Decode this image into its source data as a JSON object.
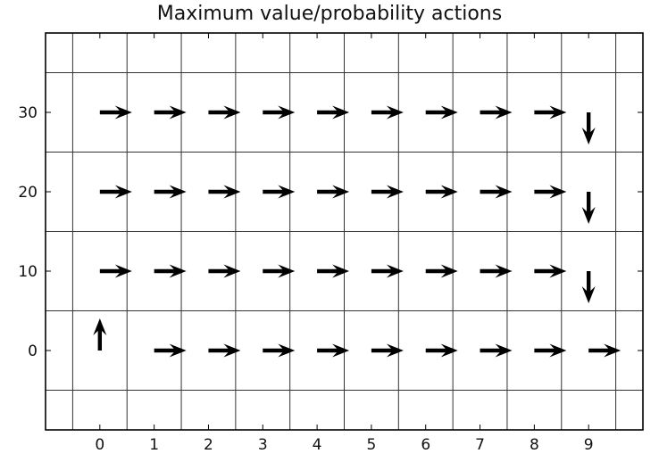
{
  "chart_data": {
    "type": "quiver",
    "title": "Maximum value/probability actions",
    "xlabel": "",
    "ylabel": "",
    "xlim": [
      -1,
      10
    ],
    "ylim": [
      -10,
      40
    ],
    "x_ticks": [
      0,
      1,
      2,
      3,
      4,
      5,
      6,
      7,
      8,
      9
    ],
    "x_tick_labels": [
      "0",
      "1",
      "2",
      "3",
      "4",
      "5",
      "6",
      "7",
      "8",
      "9"
    ],
    "y_ticks": [
      0,
      10,
      20,
      30
    ],
    "y_tick_labels": [
      "0",
      "10",
      "20",
      "30"
    ],
    "x_grid_lines": [
      -0.5,
      0.5,
      1.5,
      2.5,
      3.5,
      4.5,
      5.5,
      6.5,
      7.5,
      8.5,
      9.5
    ],
    "y_grid_lines": [
      -5,
      5,
      15,
      25,
      35
    ],
    "grid": true,
    "arrows": [
      {
        "x": 0,
        "y": 30,
        "direction": "right"
      },
      {
        "x": 1,
        "y": 30,
        "direction": "right"
      },
      {
        "x": 2,
        "y": 30,
        "direction": "right"
      },
      {
        "x": 3,
        "y": 30,
        "direction": "right"
      },
      {
        "x": 4,
        "y": 30,
        "direction": "right"
      },
      {
        "x": 5,
        "y": 30,
        "direction": "right"
      },
      {
        "x": 6,
        "y": 30,
        "direction": "right"
      },
      {
        "x": 7,
        "y": 30,
        "direction": "right"
      },
      {
        "x": 8,
        "y": 30,
        "direction": "right"
      },
      {
        "x": 9,
        "y": 30,
        "direction": "down"
      },
      {
        "x": 0,
        "y": 20,
        "direction": "right"
      },
      {
        "x": 1,
        "y": 20,
        "direction": "right"
      },
      {
        "x": 2,
        "y": 20,
        "direction": "right"
      },
      {
        "x": 3,
        "y": 20,
        "direction": "right"
      },
      {
        "x": 4,
        "y": 20,
        "direction": "right"
      },
      {
        "x": 5,
        "y": 20,
        "direction": "right"
      },
      {
        "x": 6,
        "y": 20,
        "direction": "right"
      },
      {
        "x": 7,
        "y": 20,
        "direction": "right"
      },
      {
        "x": 8,
        "y": 20,
        "direction": "right"
      },
      {
        "x": 9,
        "y": 20,
        "direction": "down"
      },
      {
        "x": 0,
        "y": 10,
        "direction": "right"
      },
      {
        "x": 1,
        "y": 10,
        "direction": "right"
      },
      {
        "x": 2,
        "y": 10,
        "direction": "right"
      },
      {
        "x": 3,
        "y": 10,
        "direction": "right"
      },
      {
        "x": 4,
        "y": 10,
        "direction": "right"
      },
      {
        "x": 5,
        "y": 10,
        "direction": "right"
      },
      {
        "x": 6,
        "y": 10,
        "direction": "right"
      },
      {
        "x": 7,
        "y": 10,
        "direction": "right"
      },
      {
        "x": 8,
        "y": 10,
        "direction": "right"
      },
      {
        "x": 9,
        "y": 10,
        "direction": "down"
      },
      {
        "x": 0,
        "y": 0,
        "direction": "up"
      },
      {
        "x": 1,
        "y": 0,
        "direction": "right"
      },
      {
        "x": 2,
        "y": 0,
        "direction": "right"
      },
      {
        "x": 3,
        "y": 0,
        "direction": "right"
      },
      {
        "x": 4,
        "y": 0,
        "direction": "right"
      },
      {
        "x": 5,
        "y": 0,
        "direction": "right"
      },
      {
        "x": 6,
        "y": 0,
        "direction": "right"
      },
      {
        "x": 7,
        "y": 0,
        "direction": "right"
      },
      {
        "x": 8,
        "y": 0,
        "direction": "right"
      },
      {
        "x": 9,
        "y": 0,
        "direction": "right"
      }
    ]
  }
}
